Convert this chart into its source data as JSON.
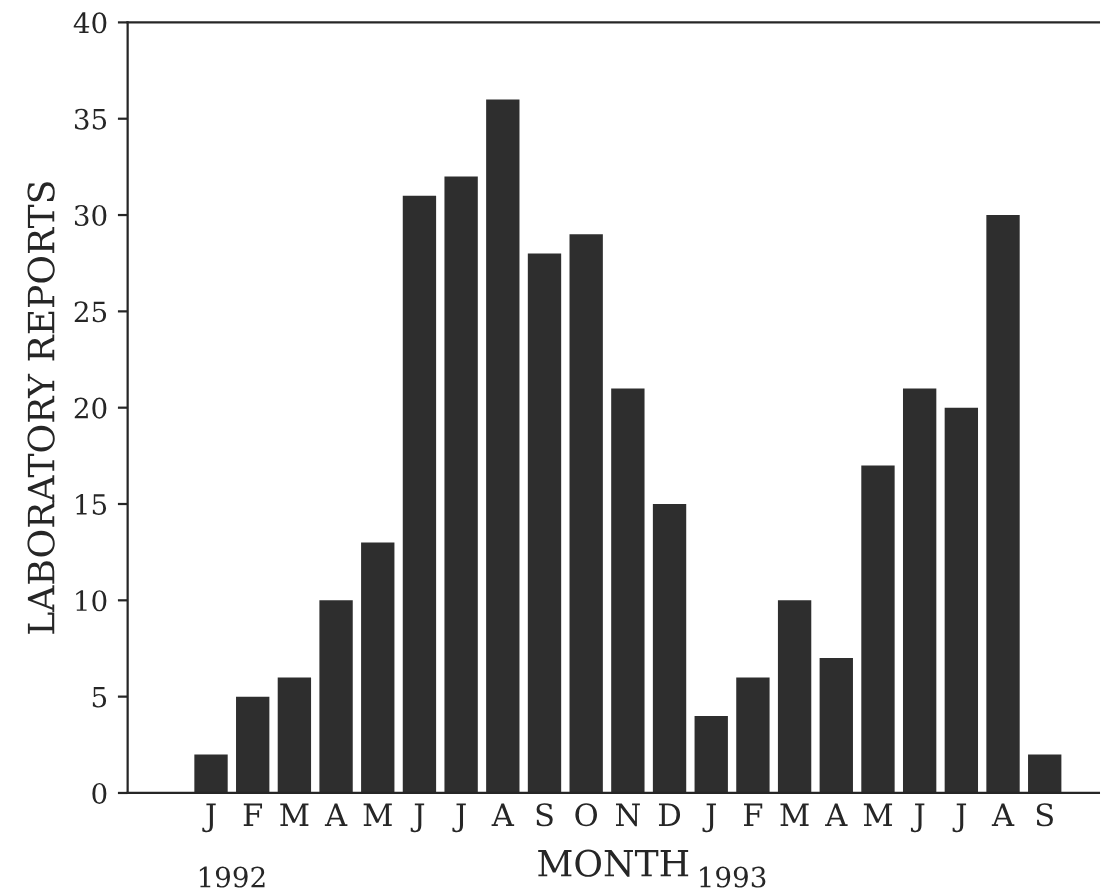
{
  "chart_data": {
    "type": "bar",
    "xlabel": "MONTH",
    "ylabel": "LABORATORY REPORTS",
    "categories": [
      "J",
      "F",
      "M",
      "A",
      "M",
      "J",
      "J",
      "A",
      "S",
      "O",
      "N",
      "D",
      "J",
      "F",
      "M",
      "A",
      "M",
      "J",
      "J",
      "A",
      "S"
    ],
    "values": [
      2,
      5,
      6,
      10,
      13,
      31,
      32,
      36,
      28,
      29,
      21,
      15,
      4,
      6,
      10,
      7,
      17,
      21,
      20,
      30,
      2
    ],
    "color": "#2e2e2e",
    "ylim": [
      0,
      40
    ],
    "yticks": [
      0,
      5,
      10,
      15,
      20,
      25,
      30,
      35,
      40
    ],
    "grid": false,
    "annotations": [
      "1992",
      "1993"
    ]
  }
}
